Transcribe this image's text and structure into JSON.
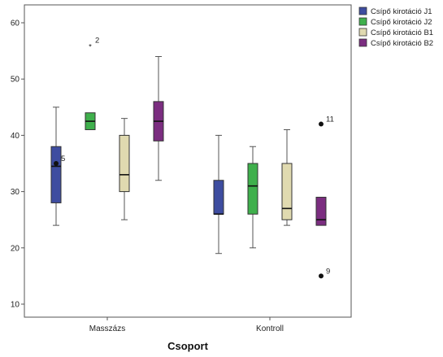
{
  "chart_data": {
    "type": "boxplot",
    "title": "",
    "xlabel": "Csoport",
    "ylabel": "",
    "ylim": [
      8,
      65
    ],
    "yticks": [
      10,
      20,
      30,
      40,
      50,
      60
    ],
    "grid": false,
    "legend_position": "top-right",
    "categories": [
      "Masszázs",
      "Kontroll"
    ],
    "series": [
      {
        "name": "Csípő kirotáció J1",
        "color": "#3e4da0",
        "boxes": [
          {
            "min": 24,
            "q1": 28,
            "median": 34.5,
            "q3": 38,
            "max": 45,
            "outliers": [
              {
                "value": 35,
                "label": "5",
                "symbol": "circle"
              }
            ]
          },
          {
            "min": 19,
            "q1": 26,
            "median": 26,
            "q3": 32,
            "max": 40,
            "outliers": []
          }
        ]
      },
      {
        "name": "Csípő kirotáció J2",
        "color": "#3fb04c",
        "boxes": [
          {
            "min": 41,
            "q1": 41,
            "median": 42.5,
            "q3": 44,
            "max": 44,
            "outliers": [
              {
                "value": 56,
                "label": "2",
                "symbol": "star"
              }
            ]
          },
          {
            "min": 20,
            "q1": 26,
            "median": 31,
            "q3": 35,
            "max": 38,
            "outliers": []
          }
        ]
      },
      {
        "name": "Csípő kirotáció B1",
        "color": "#e0dab0",
        "boxes": [
          {
            "min": 25,
            "q1": 30,
            "median": 33,
            "q3": 40,
            "max": 43,
            "outliers": []
          },
          {
            "min": 24,
            "q1": 25,
            "median": 27,
            "q3": 35,
            "max": 41,
            "outliers": []
          }
        ]
      },
      {
        "name": "Csípő kirotáció B2",
        "color": "#7b2d80",
        "boxes": [
          {
            "min": 32,
            "q1": 39,
            "median": 42.5,
            "q3": 46,
            "max": 54,
            "outliers": []
          },
          {
            "min": 24,
            "q1": 24,
            "median": 25,
            "q3": 29,
            "max": 29,
            "outliers": [
              {
                "value": 42,
                "label": "11",
                "symbol": "circle"
              },
              {
                "value": 15,
                "label": "9",
                "symbol": "circle"
              }
            ]
          }
        ]
      }
    ]
  }
}
